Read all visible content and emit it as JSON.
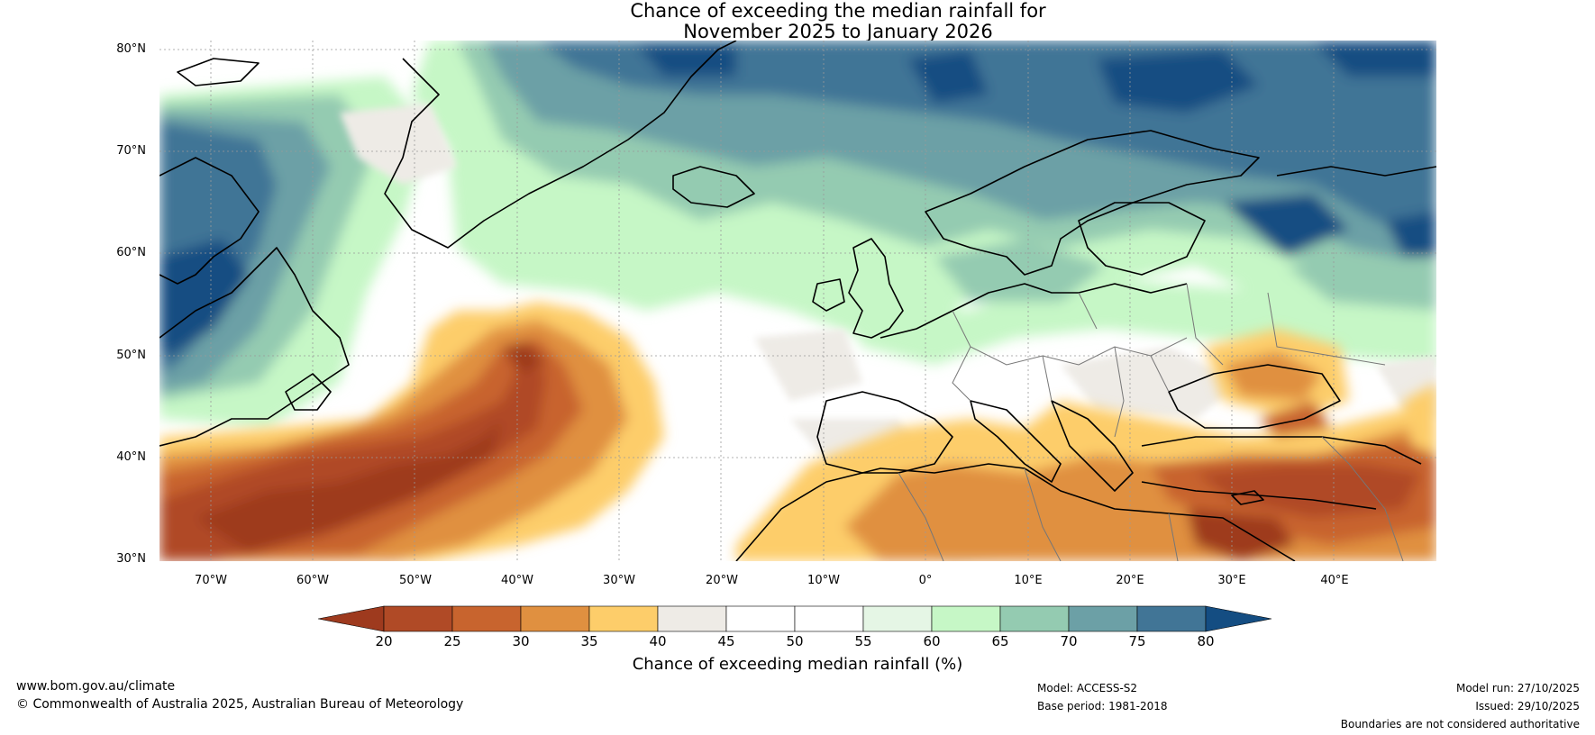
{
  "title": {
    "line1": "Chance of exceeding the median rainfall for",
    "line2": "November 2025 to January 2026"
  },
  "map": {
    "lat_labels": [
      "80°N",
      "70°N",
      "60°N",
      "50°N",
      "40°N",
      "30°N"
    ],
    "lon_labels": [
      "70°W",
      "60°W",
      "50°W",
      "40°W",
      "30°W",
      "20°W",
      "10°W",
      "0°",
      "10°E",
      "20°E",
      "30°E",
      "40°E"
    ],
    "palette": {
      "20": "#9e3a1e",
      "25": "#b04a26",
      "30": "#c8642e",
      "35": "#e09040",
      "40": "#fdcd6a",
      "45": "#eeebe6",
      "50": "#ffffff",
      "55": "#ffffff",
      "60": "#e5f6e5",
      "65": "#c6f7c6",
      "70": "#94cbb1",
      "75": "#6ca0a6",
      "80": "#417596",
      "85": "#144d82"
    },
    "coastline_color": "#000000",
    "border_color": "#777777"
  },
  "colorbar": {
    "ticks": [
      "20",
      "25",
      "30",
      "35",
      "40",
      "45",
      "50",
      "55",
      "60",
      "65",
      "70",
      "75",
      "80"
    ],
    "label": "Chance of exceeding median rainfall (%)"
  },
  "footer": {
    "website": "www.bom.gov.au/climate",
    "copyright": "© Commonwealth of Australia 2025, Australian Bureau of Meteorology",
    "model": "Model: ACCESS-S2",
    "base_period": "Base period: 1981-2018",
    "model_run": "Model run: 27/10/2025",
    "issued": "Issued: 29/10/2025",
    "disclaimer": "Boundaries are not considered authoritative"
  }
}
